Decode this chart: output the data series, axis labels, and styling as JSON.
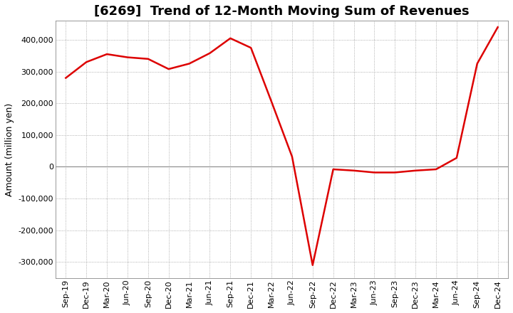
{
  "title": "[6269]  Trend of 12-Month Moving Sum of Revenues",
  "ylabel": "Amount (million yen)",
  "background_color": "#ffffff",
  "plot_bg_color": "#ffffff",
  "grid_color": "#999999",
  "line_color": "#dd0000",
  "zero_line_color": "#888888",
  "x_labels": [
    "Sep-19",
    "Dec-19",
    "Mar-20",
    "Jun-20",
    "Sep-20",
    "Dec-20",
    "Mar-21",
    "Jun-21",
    "Sep-21",
    "Dec-21",
    "Mar-22",
    "Jun-22",
    "Sep-22",
    "Dec-22",
    "Mar-23",
    "Jun-23",
    "Sep-23",
    "Dec-23",
    "Mar-24",
    "Jun-24",
    "Sep-24",
    "Dec-24"
  ],
  "values": [
    280000,
    330000,
    355000,
    345000,
    340000,
    308000,
    325000,
    358000,
    405000,
    375000,
    205000,
    32000,
    -310000,
    -8000,
    -12000,
    -18000,
    -18000,
    -12000,
    -8000,
    28000,
    325000,
    440000
  ],
  "ylim": [
    -350000,
    460000
  ],
  "yticks": [
    -300000,
    -200000,
    -100000,
    0,
    100000,
    200000,
    300000,
    400000
  ],
  "title_fontsize": 13,
  "axis_fontsize": 8,
  "label_fontsize": 9,
  "line_width": 1.8
}
